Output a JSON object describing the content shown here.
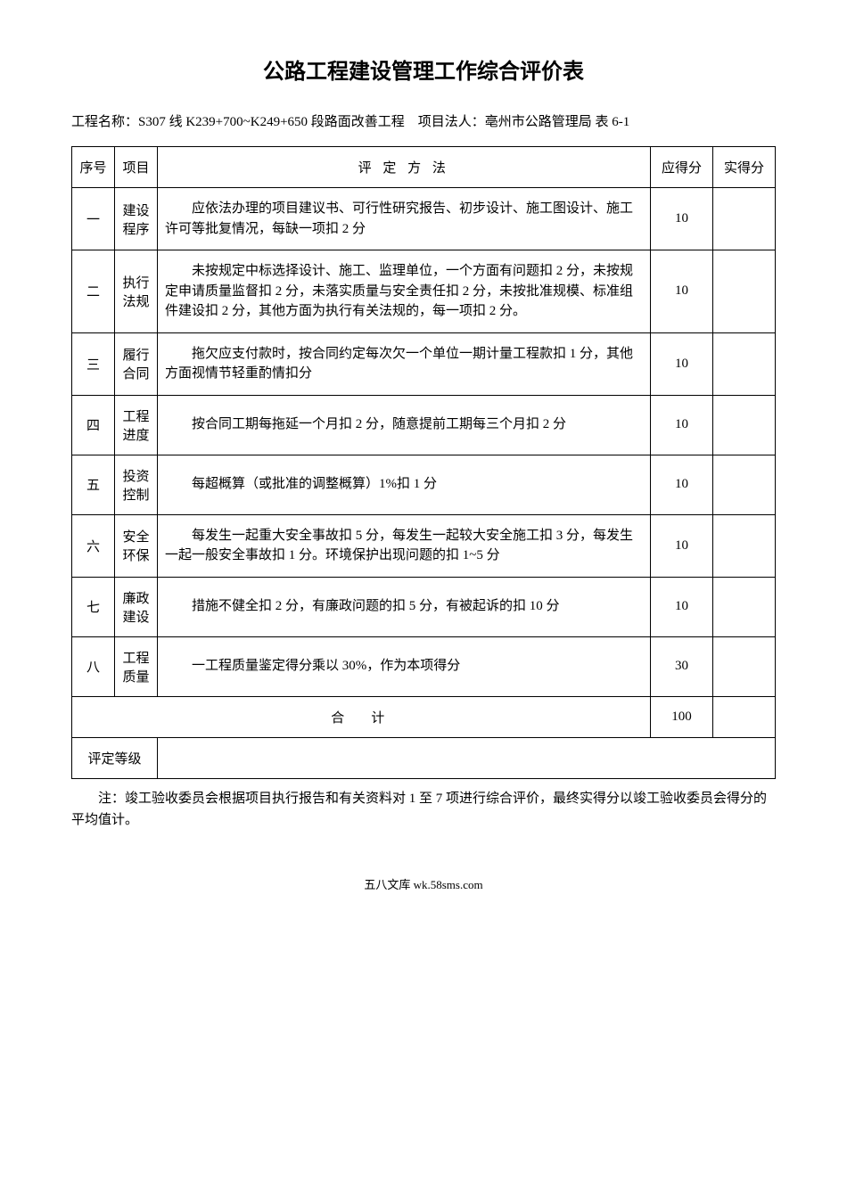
{
  "title": "公路工程建设管理工作综合评价表",
  "subtitle": "工程名称：S307 线 K239+700~K249+650 段路面改善工程　项目法人：亳州市公路管理局 表 6-1",
  "headers": {
    "seq": "序号",
    "item": "项目",
    "method": "评 定 方 法",
    "should": "应得分",
    "actual": "实得分"
  },
  "rows": [
    {
      "seq": "一",
      "item": "建设程序",
      "method": "应依法办理的项目建议书、可行性研究报告、初步设计、施工图设计、施工许可等批复情况，每缺一项扣 2 分",
      "should": "10",
      "actual": ""
    },
    {
      "seq": "二",
      "item": "执行法规",
      "method": "未按规定中标选择设计、施工、监理单位，一个方面有问题扣 2 分，未按规定申请质量监督扣 2 分，未落实质量与安全责任扣 2 分，未按批准规模、标准组件建设扣 2 分，其他方面为执行有关法规的，每一项扣 2 分。",
      "should": "10",
      "actual": ""
    },
    {
      "seq": "三",
      "item": "履行合同",
      "method": "拖欠应支付款时，按合同约定每次欠一个单位一期计量工程款扣 1 分，其他方面视情节轻重酌情扣分",
      "should": "10",
      "actual": ""
    },
    {
      "seq": "四",
      "item": "工程进度",
      "method": "按合同工期每拖延一个月扣 2 分，随意提前工期每三个月扣 2 分",
      "should": "10",
      "actual": ""
    },
    {
      "seq": "五",
      "item": "投资控制",
      "method": "每超概算（或批准的调整概算）1%扣 1 分",
      "should": "10",
      "actual": ""
    },
    {
      "seq": "六",
      "item": "安全环保",
      "method": "每发生一起重大安全事故扣 5 分，每发生一起较大安全施工扣 3 分，每发生一起一般安全事故扣 1 分。环境保护出现问题的扣 1~5 分",
      "should": "10",
      "actual": ""
    },
    {
      "seq": "七",
      "item": "廉政建设",
      "method": "措施不健全扣 2 分，有廉政问题的扣 5 分，有被起诉的扣 10 分",
      "should": "10",
      "actual": ""
    },
    {
      "seq": "八",
      "item": "工程质量",
      "method": "一工程质量鉴定得分乘以 30%，作为本项得分",
      "should": "30",
      "actual": ""
    }
  ],
  "total": {
    "label": "合　计",
    "should": "100",
    "actual": ""
  },
  "grade": {
    "label": "评定等级",
    "value": ""
  },
  "note": "注：竣工验收委员会根据项目执行报告和有关资料对 1 至 7 项进行综合评价，最终实得分以竣工验收委员会得分的平均值计。",
  "footer": "五八文库 wk.58sms.com"
}
